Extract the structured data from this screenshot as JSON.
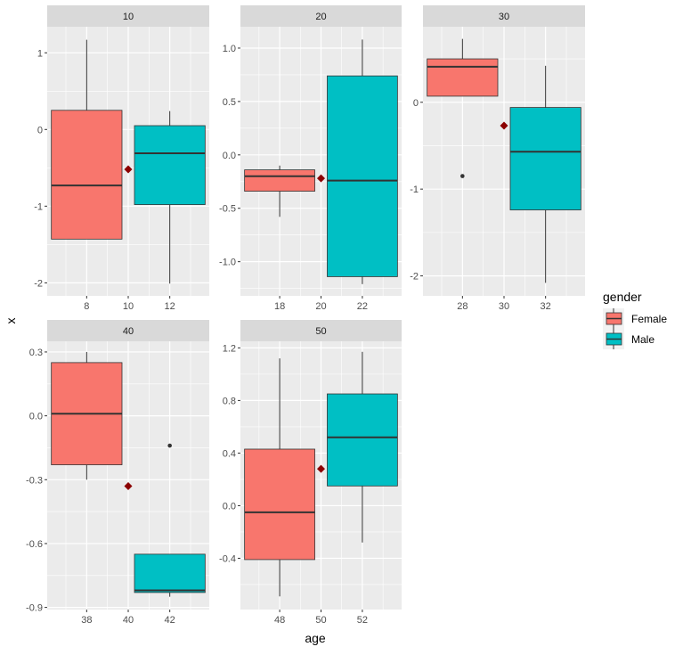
{
  "chart_data": {
    "type": "boxplot",
    "xlabel": "age",
    "ylabel": "x",
    "grid": true,
    "legend": {
      "title": "gender",
      "position": "right",
      "entries": [
        "Female",
        "Male"
      ]
    },
    "colors": {
      "Female": "#F8766D",
      "Male": "#00BFC4",
      "mean_marker": "#8B0000",
      "strip": "#D9D9D9",
      "panel": "#EBEBEB"
    },
    "facets": [
      {
        "label": "10",
        "xticks": [
          "8",
          "10",
          "12"
        ],
        "xtick_values": [
          8,
          10,
          12
        ],
        "xlim": [
          6.1,
          13.9
        ],
        "yticks": [
          "-2",
          "-1",
          "0",
          "1"
        ],
        "ytick_values": [
          -2,
          -1,
          0,
          1
        ],
        "ylim": [
          -2.17,
          1.34
        ],
        "mean": {
          "x": 10,
          "y": -0.52
        },
        "boxes": [
          {
            "group": "Female",
            "x": 8,
            "lower_whisker": -1.43,
            "q1": -1.43,
            "median": -0.73,
            "q3": 0.25,
            "upper_whisker": 1.17,
            "outliers": []
          },
          {
            "group": "Male",
            "x": 12,
            "lower_whisker": -2.01,
            "q1": -0.98,
            "median": -0.31,
            "q3": 0.05,
            "upper_whisker": 0.24,
            "outliers": []
          }
        ]
      },
      {
        "label": "20",
        "xticks": [
          "18",
          "20",
          "22"
        ],
        "xtick_values": [
          18,
          20,
          22
        ],
        "xlim": [
          16.1,
          23.9
        ],
        "yticks": [
          "-1.0",
          "-0.5",
          "0.0",
          "0.5",
          "1.0"
        ],
        "ytick_values": [
          -1,
          -0.5,
          0,
          0.5,
          1
        ],
        "ylim": [
          -1.32,
          1.2
        ],
        "mean": {
          "x": 20,
          "y": -0.22
        },
        "boxes": [
          {
            "group": "Female",
            "x": 18,
            "lower_whisker": -0.58,
            "q1": -0.34,
            "median": -0.2,
            "q3": -0.14,
            "upper_whisker": -0.1,
            "outliers": []
          },
          {
            "group": "Male",
            "x": 22,
            "lower_whisker": -1.21,
            "q1": -1.14,
            "median": -0.24,
            "q3": 0.74,
            "upper_whisker": 1.08,
            "outliers": []
          }
        ]
      },
      {
        "label": "30",
        "xticks": [
          "28",
          "30",
          "32"
        ],
        "xtick_values": [
          28,
          30,
          32
        ],
        "xlim": [
          26.1,
          33.9
        ],
        "yticks": [
          "-2",
          "-1",
          "0"
        ],
        "ytick_values": [
          -2,
          -1,
          0
        ],
        "ylim": [
          -2.23,
          0.87
        ],
        "mean": {
          "x": 30,
          "y": -0.27
        },
        "boxes": [
          {
            "group": "Female",
            "x": 28,
            "lower_whisker": 0.07,
            "q1": 0.07,
            "median": 0.41,
            "q3": 0.5,
            "upper_whisker": 0.73,
            "outliers": [
              -0.85
            ]
          },
          {
            "group": "Male",
            "x": 32,
            "lower_whisker": -2.08,
            "q1": -1.24,
            "median": -0.57,
            "q3": -0.06,
            "upper_whisker": 0.42,
            "outliers": []
          }
        ]
      },
      {
        "label": "40",
        "xticks": [
          "38",
          "40",
          "42"
        ],
        "xtick_values": [
          38,
          40,
          42
        ],
        "xlim": [
          36.1,
          43.9
        ],
        "yticks": [
          "-0.9",
          "-0.6",
          "-0.3",
          "0.0",
          "0.3"
        ],
        "ytick_values": [
          -0.9,
          -0.6,
          -0.3,
          0,
          0.3
        ],
        "ylim": [
          -0.91,
          0.35
        ],
        "mean": {
          "x": 40,
          "y": -0.33
        },
        "boxes": [
          {
            "group": "Female",
            "x": 38,
            "lower_whisker": -0.3,
            "q1": -0.23,
            "median": 0.01,
            "q3": 0.25,
            "upper_whisker": 0.3,
            "outliers": []
          },
          {
            "group": "Male",
            "x": 42,
            "lower_whisker": -0.85,
            "q1": -0.83,
            "median": -0.82,
            "q3": -0.65,
            "upper_whisker": -0.65,
            "outliers": [
              -0.14
            ]
          }
        ]
      },
      {
        "label": "50",
        "xticks": [
          "48",
          "50",
          "52"
        ],
        "xtick_values": [
          48,
          50,
          52
        ],
        "xlim": [
          46.1,
          53.9
        ],
        "yticks": [
          "-0.4",
          "0.0",
          "0.4",
          "0.8",
          "1.2"
        ],
        "ytick_values": [
          -0.4,
          0,
          0.4,
          0.8,
          1.2
        ],
        "ylim": [
          -0.79,
          1.25
        ],
        "mean": {
          "x": 50,
          "y": 0.28
        },
        "boxes": [
          {
            "group": "Female",
            "x": 48,
            "lower_whisker": -0.69,
            "q1": -0.41,
            "median": -0.05,
            "q3": 0.43,
            "upper_whisker": 1.12,
            "outliers": []
          },
          {
            "group": "Male",
            "x": 52,
            "lower_whisker": -0.28,
            "q1": 0.15,
            "median": 0.52,
            "q3": 0.85,
            "upper_whisker": 1.17,
            "outliers": []
          }
        ]
      }
    ]
  }
}
